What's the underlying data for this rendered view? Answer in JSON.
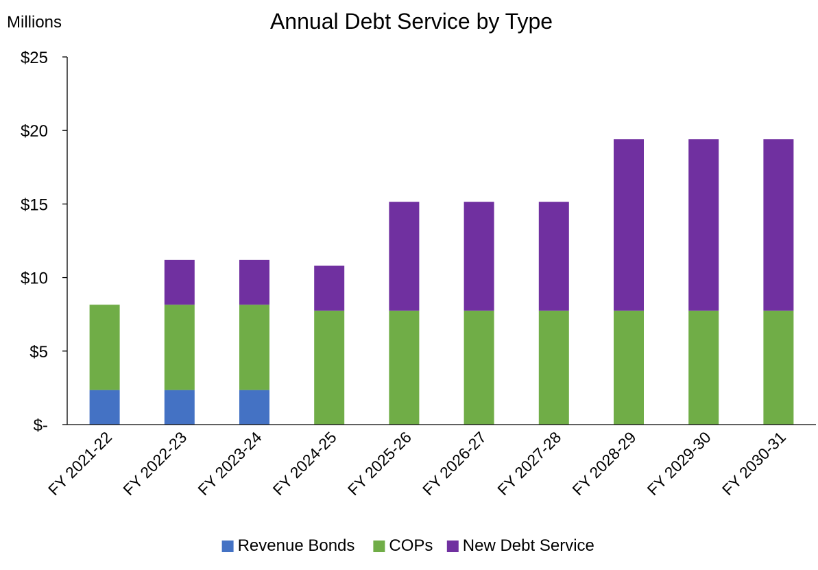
{
  "chart_data": {
    "type": "bar",
    "stacked": true,
    "title": "Annual Debt Service by Type",
    "unit_label": "Millions",
    "xlabel": "",
    "ylabel": "",
    "ylim": [
      0,
      25
    ],
    "y_ticks": [
      {
        "value": 0,
        "label": "$-"
      },
      {
        "value": 5,
        "label": "$5"
      },
      {
        "value": 10,
        "label": "$10"
      },
      {
        "value": 15,
        "label": "$15"
      },
      {
        "value": 20,
        "label": "$20"
      },
      {
        "value": 25,
        "label": "$25"
      }
    ],
    "grid": false,
    "legend_position": "bottom",
    "categories": [
      "FY 2021-22",
      "FY 2022-23",
      "FY 2023-24",
      "FY 2024-25",
      "FY 2025-26",
      "FY 2026-27",
      "FY 2027-28",
      "FY 2028-29",
      "FY 2029-30",
      "FY 2030-31"
    ],
    "series": [
      {
        "name": "Revenue Bonds",
        "color": "#4472C4",
        "values": [
          2.35,
          2.35,
          2.35,
          0,
          0,
          0,
          0,
          0,
          0,
          0
        ]
      },
      {
        "name": "COPs",
        "color": "#70AD47",
        "values": [
          5.8,
          5.8,
          5.8,
          7.75,
          7.75,
          7.75,
          7.75,
          7.75,
          7.75,
          7.75
        ]
      },
      {
        "name": "New Debt Service",
        "color": "#7030A0",
        "values": [
          0,
          3.05,
          3.05,
          3.05,
          7.4,
          7.4,
          7.4,
          11.65,
          11.65,
          11.65
        ]
      }
    ]
  }
}
